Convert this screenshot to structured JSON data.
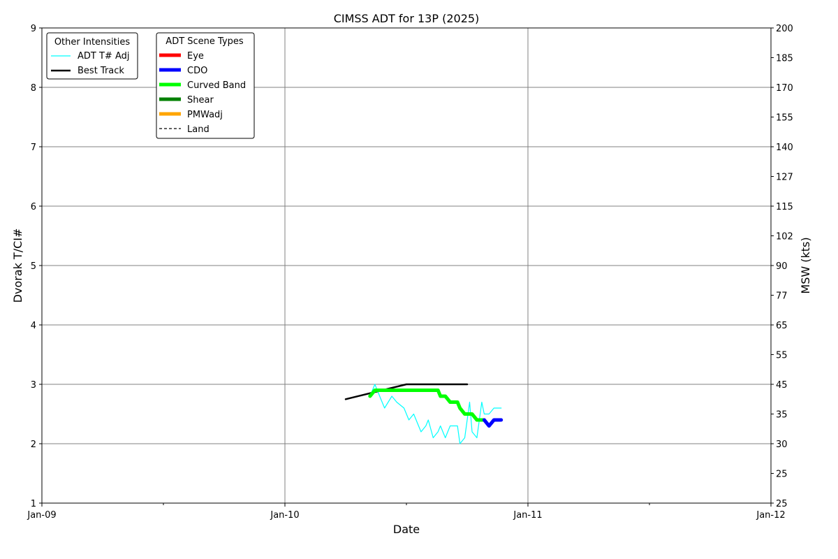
{
  "chart_data": {
    "type": "line",
    "title": "CIMSS ADT for 13P (2025)",
    "xlabel": "Date",
    "ylabel_left": "Dvorak T/CI#",
    "ylabel_right": "MSW (kts)",
    "x_ticks": [
      "Jan-09",
      "Jan-10",
      "Jan-11",
      "Jan-12"
    ],
    "xlim_days": [
      9,
      12
    ],
    "ylim": [
      1,
      9
    ],
    "y_ticks": [
      "1",
      "2",
      "3",
      "4",
      "5",
      "6",
      "7",
      "8",
      "9"
    ],
    "y_right_ticks": [
      {
        "t": 1.0,
        "label": "25"
      },
      {
        "t": 1.5,
        "label": "25"
      },
      {
        "t": 2.0,
        "label": "30"
      },
      {
        "t": 2.5,
        "label": "35"
      },
      {
        "t": 3.0,
        "label": "45"
      },
      {
        "t": 3.5,
        "label": "55"
      },
      {
        "t": 4.0,
        "label": "65"
      },
      {
        "t": 4.5,
        "label": "77"
      },
      {
        "t": 5.0,
        "label": "90"
      },
      {
        "t": 5.5,
        "label": "102"
      },
      {
        "t": 6.0,
        "label": "115"
      },
      {
        "t": 6.5,
        "label": "127"
      },
      {
        "t": 7.0,
        "label": "140"
      },
      {
        "t": 7.5,
        "label": "155"
      },
      {
        "t": 8.0,
        "label": "170"
      },
      {
        "t": 8.5,
        "label": "185"
      },
      {
        "t": 9.0,
        "label": "200"
      }
    ],
    "grid": true,
    "legends": [
      {
        "title": "Other Intensities",
        "placement": "top-left",
        "entries": [
          {
            "label": "ADT T# Adj",
            "color": "#00ffff",
            "style": "thin"
          },
          {
            "label": "Best Track",
            "color": "#000000",
            "style": "medium"
          }
        ]
      },
      {
        "title": "ADT Scene Types",
        "placement": "top-left",
        "entries": [
          {
            "label": "Eye",
            "color": "#ff0000",
            "style": "thick"
          },
          {
            "label": "CDO",
            "color": "#0000ff",
            "style": "thick"
          },
          {
            "label": "Curved Band",
            "color": "#00ff00",
            "style": "thick"
          },
          {
            "label": "Shear",
            "color": "#008000",
            "style": "thick"
          },
          {
            "label": "PMWadj",
            "color": "#ffa500",
            "style": "thick"
          },
          {
            "label": "Land",
            "color": "#000000",
            "style": "dashed"
          }
        ]
      }
    ],
    "series": [
      {
        "name": "ADT T# Adj",
        "color": "#00ffff",
        "x": [
          10.35,
          10.37,
          10.39,
          10.41,
          10.44,
          10.46,
          10.49,
          10.51,
          10.53,
          10.54,
          10.56,
          10.58,
          10.59,
          10.61,
          10.63,
          10.64,
          10.66,
          10.68,
          10.69,
          10.71,
          10.72,
          10.74,
          10.76,
          10.77,
          10.79,
          10.81,
          10.82,
          10.84,
          10.86,
          10.87,
          10.89
        ],
        "y": [
          2.8,
          3.0,
          2.8,
          2.6,
          2.8,
          2.7,
          2.6,
          2.4,
          2.5,
          2.4,
          2.2,
          2.3,
          2.4,
          2.1,
          2.2,
          2.3,
          2.1,
          2.3,
          2.3,
          2.3,
          2.0,
          2.1,
          2.7,
          2.2,
          2.1,
          2.7,
          2.5,
          2.5,
          2.6,
          2.6,
          2.6
        ]
      },
      {
        "name": "Best Track",
        "color": "#000000",
        "x": [
          10.25,
          10.5,
          10.75
        ],
        "y": [
          2.75,
          3.0,
          3.0
        ]
      },
      {
        "name": "Curved Band",
        "color": "#00ff00",
        "x": [
          10.35,
          10.37,
          10.39,
          10.41,
          10.44,
          10.46,
          10.49,
          10.51,
          10.53,
          10.54,
          10.56,
          10.58,
          10.59,
          10.61,
          10.63,
          10.64,
          10.66,
          10.68,
          10.69,
          10.71,
          10.72,
          10.74,
          10.76,
          10.77,
          10.79,
          10.81,
          10.82
        ],
        "y": [
          2.8,
          2.9,
          2.9,
          2.9,
          2.9,
          2.9,
          2.9,
          2.9,
          2.9,
          2.9,
          2.9,
          2.9,
          2.9,
          2.9,
          2.9,
          2.8,
          2.8,
          2.7,
          2.7,
          2.7,
          2.6,
          2.5,
          2.5,
          2.5,
          2.4,
          2.4,
          2.4
        ]
      },
      {
        "name": "CDO",
        "color": "#0000ff",
        "x": [
          10.82,
          10.84,
          10.86,
          10.87,
          10.89
        ],
        "y": [
          2.4,
          2.3,
          2.4,
          2.4,
          2.4
        ]
      }
    ]
  }
}
